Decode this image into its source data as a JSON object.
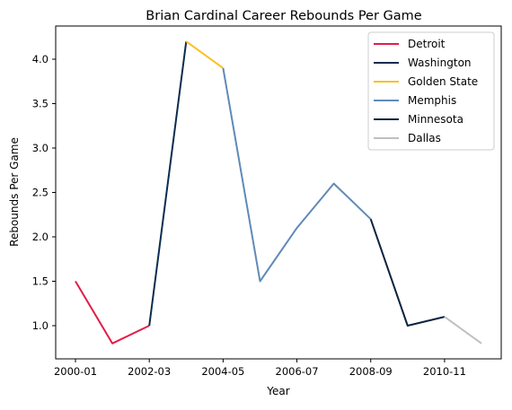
{
  "chart_data": {
    "type": "line",
    "title": "Brian Cardinal Career Rebounds Per Game",
    "xlabel": "Year",
    "ylabel": "Rebounds Per Game",
    "x_ticks": [
      "2000-01",
      "2002-03",
      "2004-05",
      "2006-07",
      "2008-09",
      "2010-11"
    ],
    "y_ticks": [
      "1.0",
      "1.5",
      "2.0",
      "2.5",
      "3.0",
      "3.5",
      "4.0"
    ],
    "ylim": [
      0.63,
      4.37
    ],
    "grid": false,
    "legend_position": "top-right",
    "series": [
      {
        "name": "Detroit",
        "color": "#e11d48",
        "x": [
          "2000-01",
          "2001-02",
          "2002-03"
        ],
        "y": [
          1.5,
          0.8,
          1.0
        ]
      },
      {
        "name": "Washington",
        "color": "#0b2c4f",
        "x": [
          "2002-03",
          "2003-04"
        ],
        "y": [
          1.0,
          4.2
        ]
      },
      {
        "name": "Golden State",
        "color": "#fbbf24",
        "x": [
          "2003-04",
          "2004-05"
        ],
        "y": [
          4.2,
          3.9
        ]
      },
      {
        "name": "Memphis",
        "color": "#5f8ab8",
        "x": [
          "2004-05",
          "2005-06",
          "2006-07",
          "2007-08",
          "2008-09"
        ],
        "y": [
          3.9,
          1.5,
          2.1,
          2.6,
          2.2
        ]
      },
      {
        "name": "Minnesota",
        "color": "#0c2340",
        "x": [
          "2008-09",
          "2009-10",
          "2010-11"
        ],
        "y": [
          2.2,
          1.0,
          1.1
        ]
      },
      {
        "name": "Dallas",
        "color": "#bfbfbf",
        "x": [
          "2010-11",
          "2011-12"
        ],
        "y": [
          1.1,
          0.8
        ]
      }
    ]
  }
}
